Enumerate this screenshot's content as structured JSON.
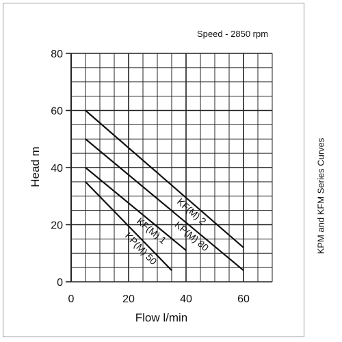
{
  "chart_data": {
    "type": "line",
    "subtitle": "Speed - 2850 rpm",
    "side_title": "KPM and KFM Series Curves",
    "xlabel": "Flow l/min",
    "ylabel": "Head m",
    "xlim": [
      0,
      70
    ],
    "ylim": [
      0,
      80
    ],
    "x_ticks": [
      "0",
      "20",
      "40",
      "60"
    ],
    "y_ticks": [
      "0",
      "20",
      "40",
      "60",
      "80"
    ],
    "grid": true,
    "series": [
      {
        "name": "KF(M) 2",
        "x": [
          5,
          60
        ],
        "y": [
          60,
          12
        ]
      },
      {
        "name": "KP(M) 80",
        "x": [
          5,
          60
        ],
        "y": [
          50,
          4
        ]
      },
      {
        "name": "KF(M) 1",
        "x": [
          5,
          40
        ],
        "y": [
          40,
          11
        ]
      },
      {
        "name": "KP(M) 50",
        "x": [
          5,
          35
        ],
        "y": [
          35,
          4
        ]
      }
    ],
    "colors": {
      "line": "#111111",
      "grid": "#222222",
      "frame": "#999999"
    }
  }
}
